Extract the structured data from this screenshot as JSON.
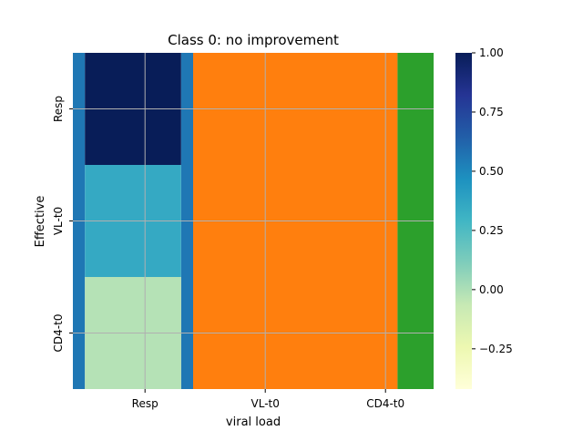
{
  "chart_data": {
    "type": "heatmap",
    "title": "Class 0: no improvement",
    "xlabel": "viral load",
    "ylabel": "Effective",
    "x_tick_labels": [
      "Resp",
      "VL-t0",
      "CD4-t0"
    ],
    "y_tick_labels": [
      "Resp",
      "VL-t0",
      "CD4-t0"
    ],
    "heatmap_cells": {
      "column": "Resp",
      "rows": [
        "Resp",
        "VL-t0",
        "CD4-t0"
      ],
      "values": [
        1.0,
        0.35,
        -0.02
      ]
    },
    "colorbar": {
      "colormap": "YlGnBu",
      "range": [
        -0.42,
        1.0
      ],
      "ticks": [
        1.0,
        0.75,
        0.5,
        0.25,
        0.0,
        -0.25
      ],
      "tick_labels": [
        "1.00",
        "0.75",
        "0.50",
        "0.25",
        "0.00",
        "−0.25"
      ]
    },
    "overlay_vertical_bands": [
      {
        "x_range": [
          -0.1,
          0.0
        ],
        "color": "#1f77b4"
      },
      {
        "x_range": [
          0.8,
          0.9
        ],
        "color": "#1f77b4"
      },
      {
        "x_range": [
          0.9,
          2.6
        ],
        "color": "#ff7f0e"
      },
      {
        "x_range": [
          2.6,
          2.9
        ],
        "color": "#2ca02c"
      }
    ],
    "x_range": [
      -0.1,
      2.9
    ],
    "y_range": [
      -0.5,
      2.5
    ],
    "grid": true
  }
}
